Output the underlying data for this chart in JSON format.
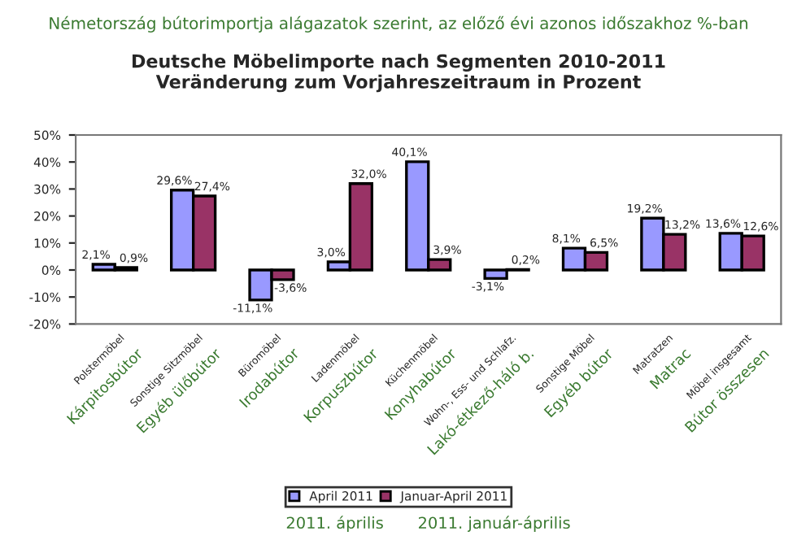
{
  "chart_data": {
    "type": "bar",
    "title": "Deutsche Möbelimporte nach Segmenten 2010-2011\nVeränderung zum Vorjahreszeitraum in Prozent",
    "subtitle": "Németország bútorimportja alágazatok szerint, az előző évi azonos időszakhoz %-ban",
    "categories": [
      "Polstermöbel\nKárpitosbútor",
      "Sonstige Sitzmöbel\nEgyéb ülőbútor",
      "Büromöbel\nIrodabútor",
      "Ladenmöbel\nKorpuszbútor",
      "Küchenmöbel\nKonyhabútor",
      "Wohn-, Ess- und Schlafz.\nLakó-étkező-háló b.",
      "Sonstige Möbel\nEgyéb bútor",
      "Matratzen\nMatrac",
      "Möbel insgesamt\nBútor összesen"
    ],
    "series": [
      {
        "name": "April 2011",
        "color": "#9999ff",
        "values": [
          2.1,
          29.6,
          -11.1,
          3.0,
          40.1,
          -3.1,
          8.1,
          19.2,
          13.6
        ],
        "value_labels": [
          "2,1%",
          "29,6%",
          "-11,1%",
          "3,0%",
          "40,1%",
          "-3,1%",
          "8,1%",
          "19,2%",
          "13,6%"
        ]
      },
      {
        "name": "Januar-April 2011",
        "color": "#993366",
        "values": [
          0.9,
          27.4,
          -3.6,
          32.0,
          3.9,
          0.2,
          6.5,
          13.2,
          12.6
        ],
        "value_labels": [
          "0,9%",
          "27,4%",
          "-3,6%",
          "32,0%",
          "3,9%",
          "0,2%",
          "6,5%",
          "13,2%",
          "12,6%"
        ]
      }
    ],
    "ylim": [
      -20,
      50
    ],
    "yticks": [
      {
        "value": -20,
        "label": "-20%"
      },
      {
        "value": -10,
        "label": "-10%"
      },
      {
        "value": 0,
        "label": "0%"
      },
      {
        "value": 10,
        "label": "10%"
      },
      {
        "value": 20,
        "label": "20%"
      },
      {
        "value": 30,
        "label": "30%"
      },
      {
        "value": 40,
        "label": "40%"
      },
      {
        "value": 50,
        "label": "50%"
      }
    ],
    "legend": "bottom",
    "grid": false,
    "annotations": [
      "2011. április",
      "2011. január-április"
    ]
  }
}
